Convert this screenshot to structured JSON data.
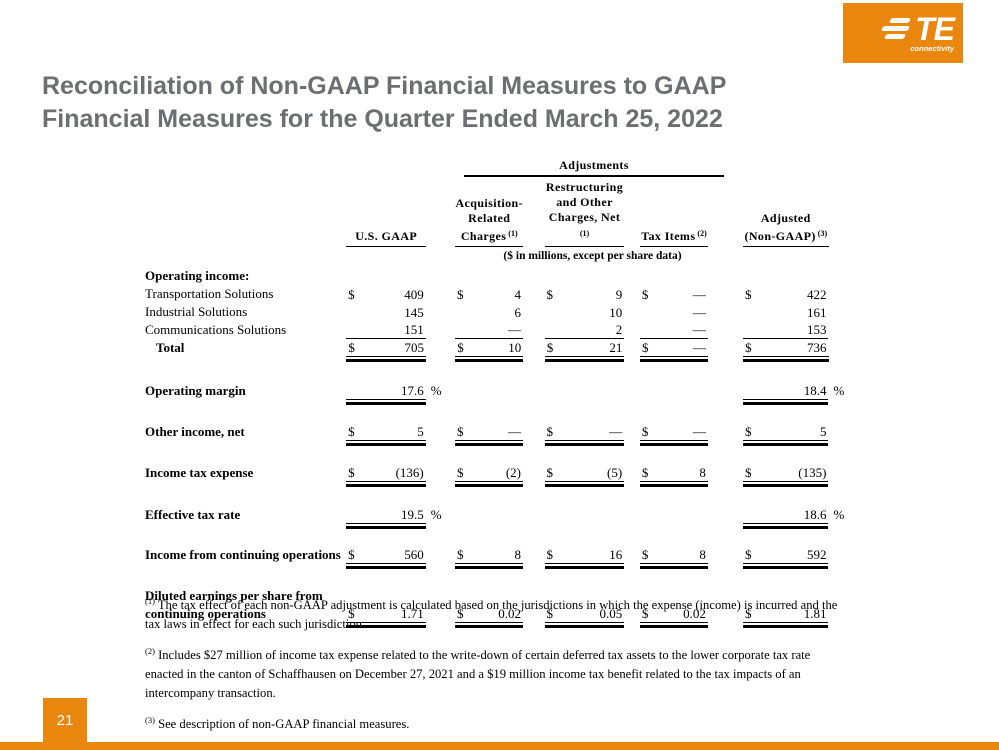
{
  "logo": {
    "brand": "TE",
    "subtitle": "connectivity"
  },
  "title": {
    "line1": "Reconciliation of Non-GAAP Financial Measures to GAAP",
    "line2": "Financial Measures for the Quarter Ended March 25, 2022"
  },
  "colors": {
    "orange": "#E8860D",
    "title_gray": "#6D6E71"
  },
  "page_number": "21",
  "table": {
    "adjustments_header": "Adjustments",
    "units_note": "($ in millions, except per share data)",
    "columns": [
      {
        "lines": [
          "U.S. GAAP"
        ],
        "sup": ""
      },
      {
        "lines": [
          "Acquisition-",
          "Related",
          "Charges"
        ],
        "sup": "(1)"
      },
      {
        "lines": [
          "Restructuring",
          "and Other",
          "Charges, Net"
        ],
        "sup": "(1)"
      },
      {
        "lines": [
          "Tax Items"
        ],
        "sup": "(2)"
      },
      {
        "lines": [
          "Adjusted",
          "(Non-GAAP)"
        ],
        "sup": "(3)"
      }
    ],
    "rows": [
      {
        "type": "section",
        "label": "Operating income:"
      },
      {
        "type": "data",
        "label": "Transportation Solutions",
        "cells": [
          {
            "d": "$",
            "v": "409"
          },
          {
            "d": "$",
            "v": "4"
          },
          {
            "d": "$",
            "v": "9"
          },
          {
            "d": "$",
            "v": "—"
          },
          {
            "d": "$",
            "v": "422"
          }
        ]
      },
      {
        "type": "data",
        "label": "Industrial Solutions",
        "cells": [
          {
            "v": "145"
          },
          {
            "v": "6"
          },
          {
            "v": "10"
          },
          {
            "v": "—"
          },
          {
            "v": "161"
          }
        ]
      },
      {
        "type": "data",
        "label": "Communications Solutions",
        "cells": [
          {
            "v": "151",
            "rule": "single"
          },
          {
            "v": "—",
            "rule": "single"
          },
          {
            "v": "2",
            "rule": "single"
          },
          {
            "v": "—",
            "rule": "single"
          },
          {
            "v": "153",
            "rule": "single"
          }
        ]
      },
      {
        "type": "data",
        "label": "Total",
        "bold": true,
        "indent": true,
        "cells": [
          {
            "d": "$",
            "v": "705",
            "rule": "double"
          },
          {
            "d": "$",
            "v": "10",
            "rule": "double"
          },
          {
            "d": "$",
            "v": "21",
            "rule": "double"
          },
          {
            "d": "$",
            "v": "—",
            "rule": "double"
          },
          {
            "d": "$",
            "v": "736",
            "rule": "double"
          }
        ]
      },
      {
        "type": "spacer",
        "h": 20
      },
      {
        "type": "data",
        "label": "Operating margin",
        "bold": true,
        "cells": [
          {
            "v": "17.6",
            "rule": "double",
            "pct": "%"
          },
          null,
          null,
          null,
          {
            "v": "18.4",
            "rule": "double",
            "pct": "%"
          }
        ]
      },
      {
        "type": "spacer",
        "h": 18
      },
      {
        "type": "data",
        "label": "Other income, net",
        "bold": true,
        "cells": [
          {
            "d": "$",
            "v": "5",
            "rule": "double"
          },
          {
            "d": "$",
            "v": "—",
            "rule": "double"
          },
          {
            "d": "$",
            "v": "—",
            "rule": "double"
          },
          {
            "d": "$",
            "v": "—",
            "rule": "double"
          },
          {
            "d": "$",
            "v": "5",
            "rule": "double"
          }
        ]
      },
      {
        "type": "spacer",
        "h": 18
      },
      {
        "type": "data",
        "label": "Income tax expense",
        "bold": true,
        "cells": [
          {
            "d": "$",
            "v": "(136)",
            "rule": "double"
          },
          {
            "d": "$",
            "v": "(2)",
            "rule": "double"
          },
          {
            "d": "$",
            "v": "(5)",
            "rule": "double"
          },
          {
            "d": "$",
            "v": "8",
            "rule": "double"
          },
          {
            "d": "$",
            "v": "(135)",
            "rule": "double"
          }
        ]
      },
      {
        "type": "spacer",
        "h": 19
      },
      {
        "type": "data",
        "label": "Effective tax rate",
        "bold": true,
        "cells": [
          {
            "v": "19.5",
            "rule": "double",
            "pct": "%"
          },
          null,
          null,
          null,
          {
            "v": "18.6",
            "rule": "double",
            "pct": "%"
          }
        ]
      },
      {
        "type": "spacer",
        "h": 17
      },
      {
        "type": "data",
        "label": "Income from continuing operations",
        "bold": true,
        "cells": [
          {
            "d": "$",
            "v": "560",
            "rule": "double"
          },
          {
            "d": "$",
            "v": "8",
            "rule": "double"
          },
          {
            "d": "$",
            "v": "16",
            "rule": "double"
          },
          {
            "d": "$",
            "v": "8",
            "rule": "double"
          },
          {
            "d": "$",
            "v": "592",
            "rule": "double"
          }
        ]
      },
      {
        "type": "spacer",
        "h": 18
      },
      {
        "type": "labelline",
        "label": "Diluted earnings per share from",
        "bold": true
      },
      {
        "type": "data",
        "label": "continuing operations",
        "bold": true,
        "cells": [
          {
            "d": "$",
            "v": "1.71",
            "rule": "double"
          },
          {
            "d": "$",
            "v": "0.02",
            "rule": "double"
          },
          {
            "d": "$",
            "v": "0.05",
            "rule": "double"
          },
          {
            "d": "$",
            "v": "0.02",
            "rule": "double"
          },
          {
            "d": "$",
            "v": "1.81",
            "rule": "double"
          }
        ]
      }
    ]
  },
  "footnotes": [
    {
      "sup": "(1)",
      "text": "The tax effect of each non-GAAP adjustment is calculated based on the jurisdictions in which the expense (income) is incurred and the tax laws in effect for each such jurisdiction."
    },
    {
      "sup": "(2)",
      "text": "Includes $27 million of income tax expense related to the write-down of certain deferred tax assets to the lower corporate tax rate enacted in the canton of Schaffhausen on December 27, 2021 and a $19 million income tax benefit related to the tax impacts of an intercompany transaction."
    },
    {
      "sup": "(3)",
      "text": "See description of non-GAAP financial measures."
    }
  ]
}
